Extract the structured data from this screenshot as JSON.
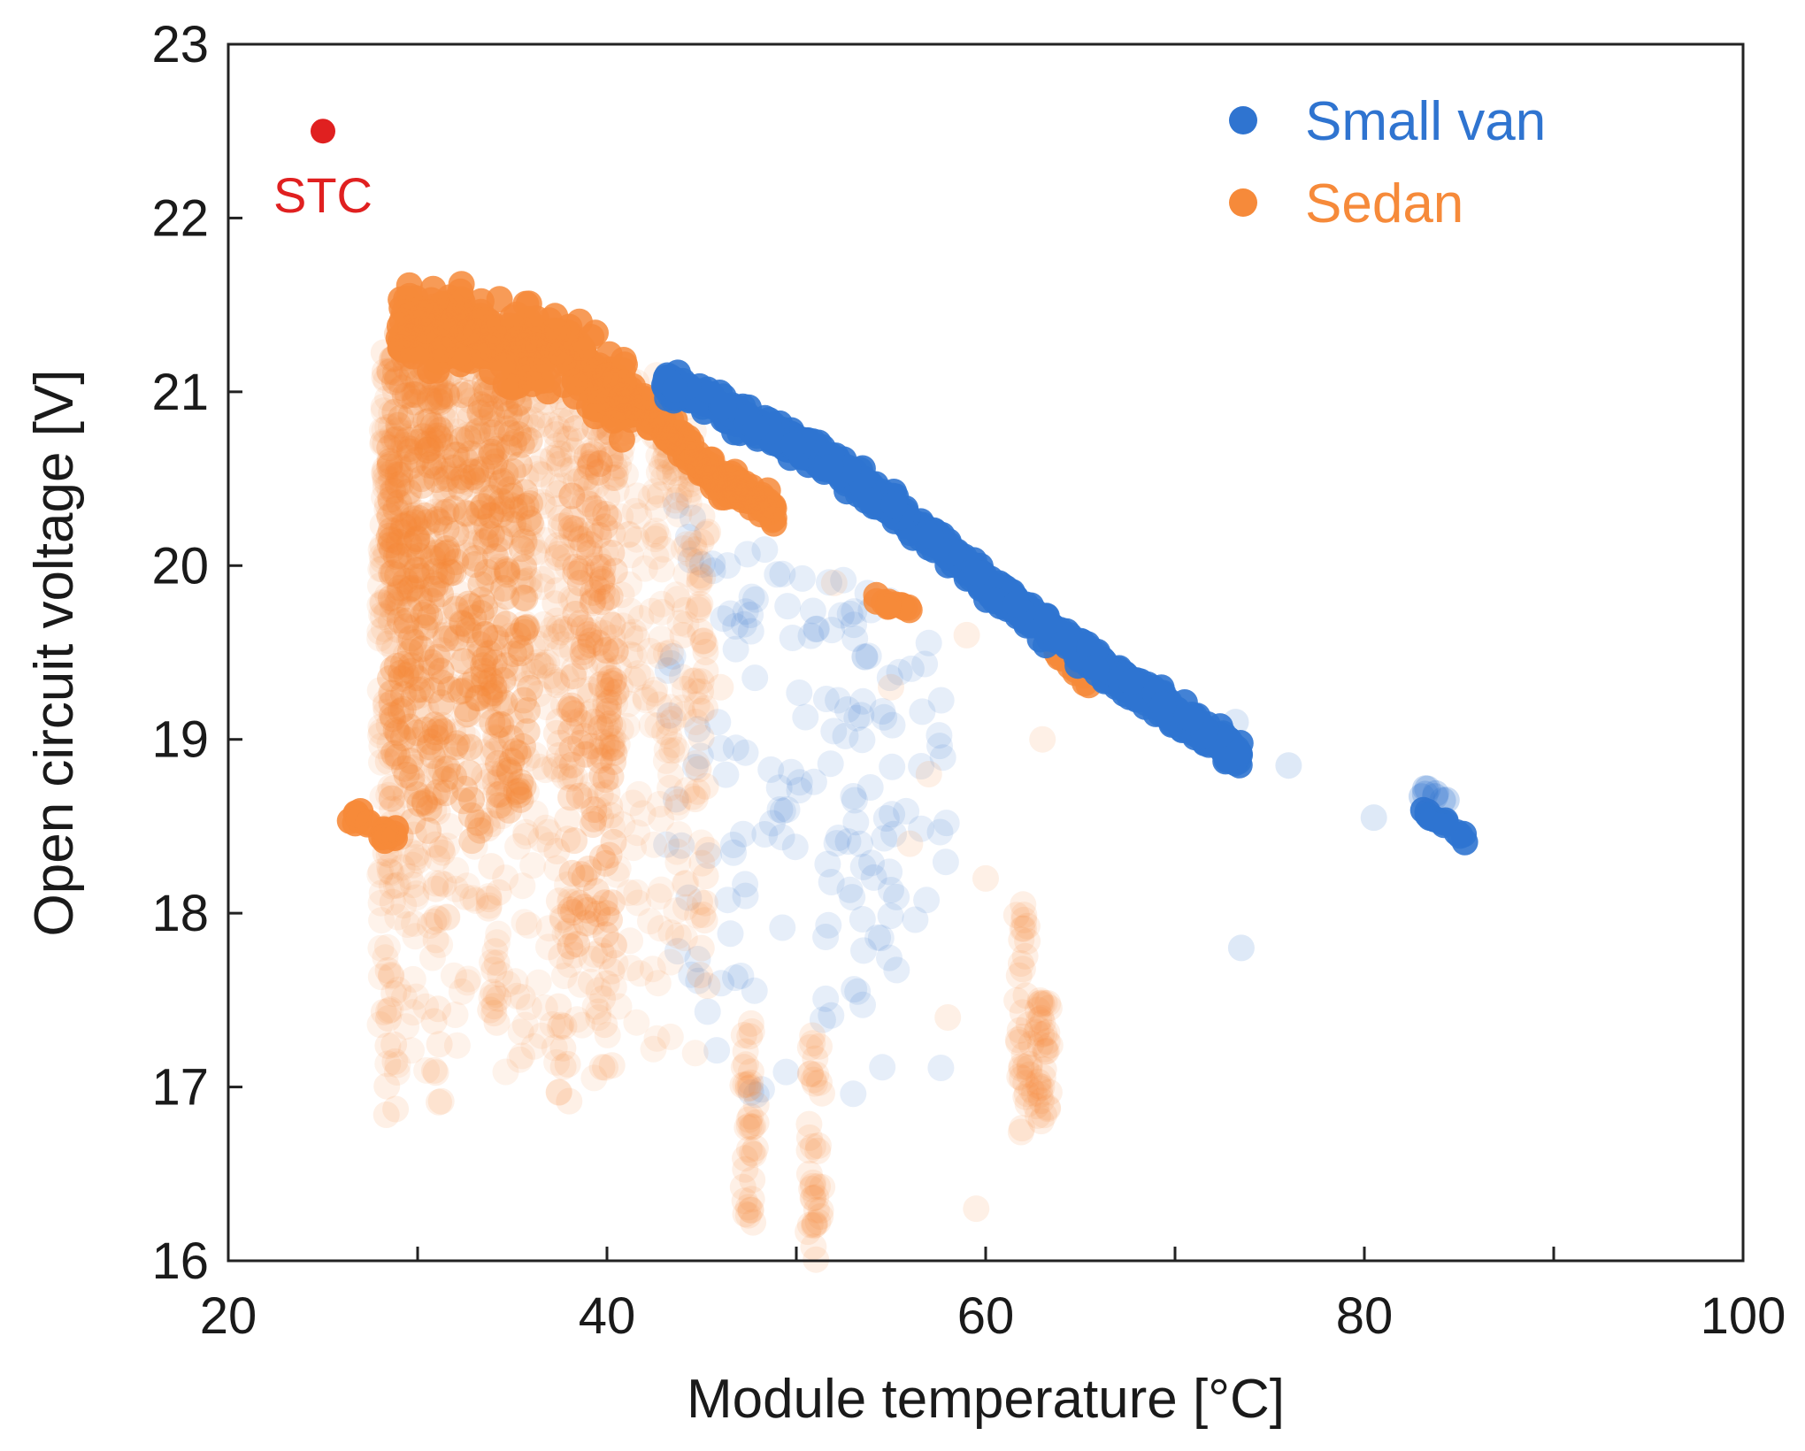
{
  "chart_data": {
    "type": "scatter",
    "xlabel": "Module temperature [°C]",
    "ylabel": "Open circuit voltage [V]",
    "xlim": [
      20,
      100
    ],
    "ylim": [
      16,
      23
    ],
    "x_ticks": [
      20,
      40,
      60,
      80,
      100
    ],
    "x_tick_labels": [
      "20",
      "40",
      "60",
      "80",
      "100"
    ],
    "x_minor_step": 10,
    "y_ticks": [
      16,
      17,
      18,
      19,
      20,
      21,
      22,
      23
    ],
    "y_tick_labels": [
      "16",
      "17",
      "18",
      "19",
      "20",
      "21",
      "22",
      "23"
    ],
    "grid": false,
    "legend_position": "top-right",
    "series": [
      {
        "name": "Small van",
        "color": "#2f74d0",
        "dense_trend": [
          [
            43,
            21.05
          ],
          [
            50,
            20.7
          ],
          [
            55,
            20.35
          ],
          [
            60,
            19.9
          ],
          [
            65,
            19.5
          ],
          [
            70,
            19.15
          ],
          [
            73.5,
            18.9
          ]
        ],
        "outlier_cluster": [
          [
            83,
            18.6
          ],
          [
            84,
            18.55
          ],
          [
            85.5,
            18.42
          ]
        ],
        "scatter_region": {
          "x": [
            43,
            58
          ],
          "y": [
            16.9,
            20.4
          ]
        }
      },
      {
        "name": "Sedan",
        "color": "#f68a3a",
        "dense_band": [
          [
            29,
            21.4
          ],
          [
            33,
            21.35
          ],
          [
            37,
            21.2
          ],
          [
            40,
            21.05
          ],
          [
            43,
            20.8
          ],
          [
            46,
            20.5
          ],
          [
            49,
            20.3
          ]
        ],
        "low_cluster": [
          [
            27,
            18.55
          ],
          [
            28.5,
            18.45
          ]
        ],
        "segments": [
          [
            54,
            19.8
          ],
          [
            56,
            19.75
          ],
          [
            64,
            19.5
          ],
          [
            65.5,
            19.3
          ],
          [
            66,
            19.25
          ]
        ],
        "scatter_region": {
          "x": [
            28,
            45
          ],
          "y": [
            16.1,
            21.2
          ]
        }
      }
    ],
    "annotations": [
      {
        "text": "STC",
        "x": 25,
        "y": 22.5,
        "color": "#e02020"
      }
    ]
  }
}
